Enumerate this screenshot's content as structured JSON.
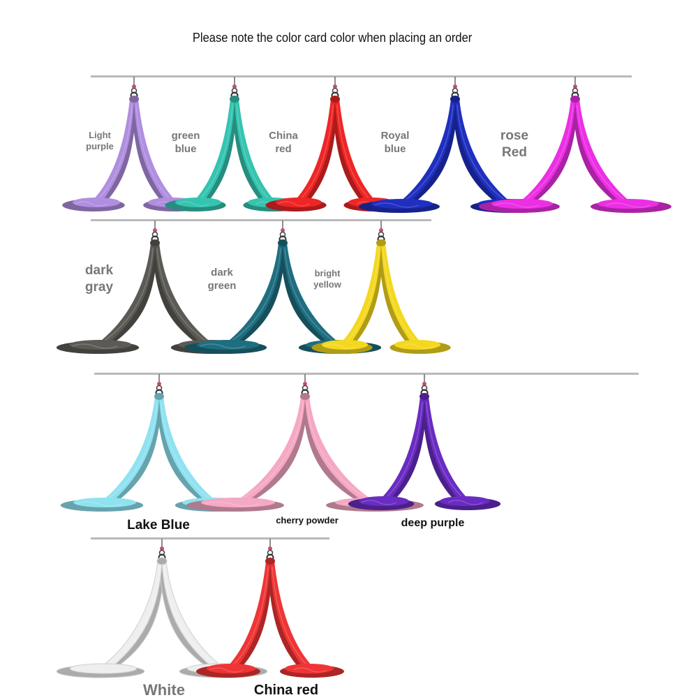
{
  "header": {
    "note": "Please note the color card color when placing an order"
  },
  "rows": [
    {
      "items": [
        {
          "name": "light-purple",
          "color": "#b08ee0",
          "label": [
            "Light",
            "purple"
          ]
        },
        {
          "name": "green-blue",
          "color": "#35c4b0",
          "label": [
            "green",
            "blue"
          ]
        },
        {
          "name": "china-red",
          "color": "#ee2626",
          "label": [
            "China",
            "red"
          ]
        },
        {
          "name": "royal-blue",
          "color": "#1f2fc0",
          "label": [
            "Royal",
            "blue"
          ]
        },
        {
          "name": "rose-red",
          "color": "#ec2fe4",
          "label": [
            "rose",
            "Red"
          ]
        }
      ]
    },
    {
      "items": [
        {
          "name": "dark-gray",
          "color": "#5b5a55",
          "label": [
            "dark",
            "gray"
          ]
        },
        {
          "name": "dark-green",
          "color": "#1e6e80",
          "label": [
            "dark",
            "green"
          ]
        },
        {
          "name": "bright-yellow",
          "color": "#f4d820",
          "label": [
            "bright",
            "yellow"
          ]
        }
      ]
    },
    {
      "items": [
        {
          "name": "lake-blue",
          "color": "#8fe2f0",
          "label": [
            "Lake Blue"
          ]
        },
        {
          "name": "cherry-powder",
          "color": "#f5a8c4",
          "label": [
            "cherry powder"
          ]
        },
        {
          "name": "deep-purple",
          "color": "#6a2cc2",
          "label": [
            "deep purple"
          ]
        }
      ]
    },
    {
      "items": [
        {
          "name": "white",
          "color": "#eeeeee",
          "label": [
            "White"
          ]
        },
        {
          "name": "china-red-2",
          "color": "#ef3535",
          "label": [
            "China red"
          ]
        }
      ]
    }
  ]
}
